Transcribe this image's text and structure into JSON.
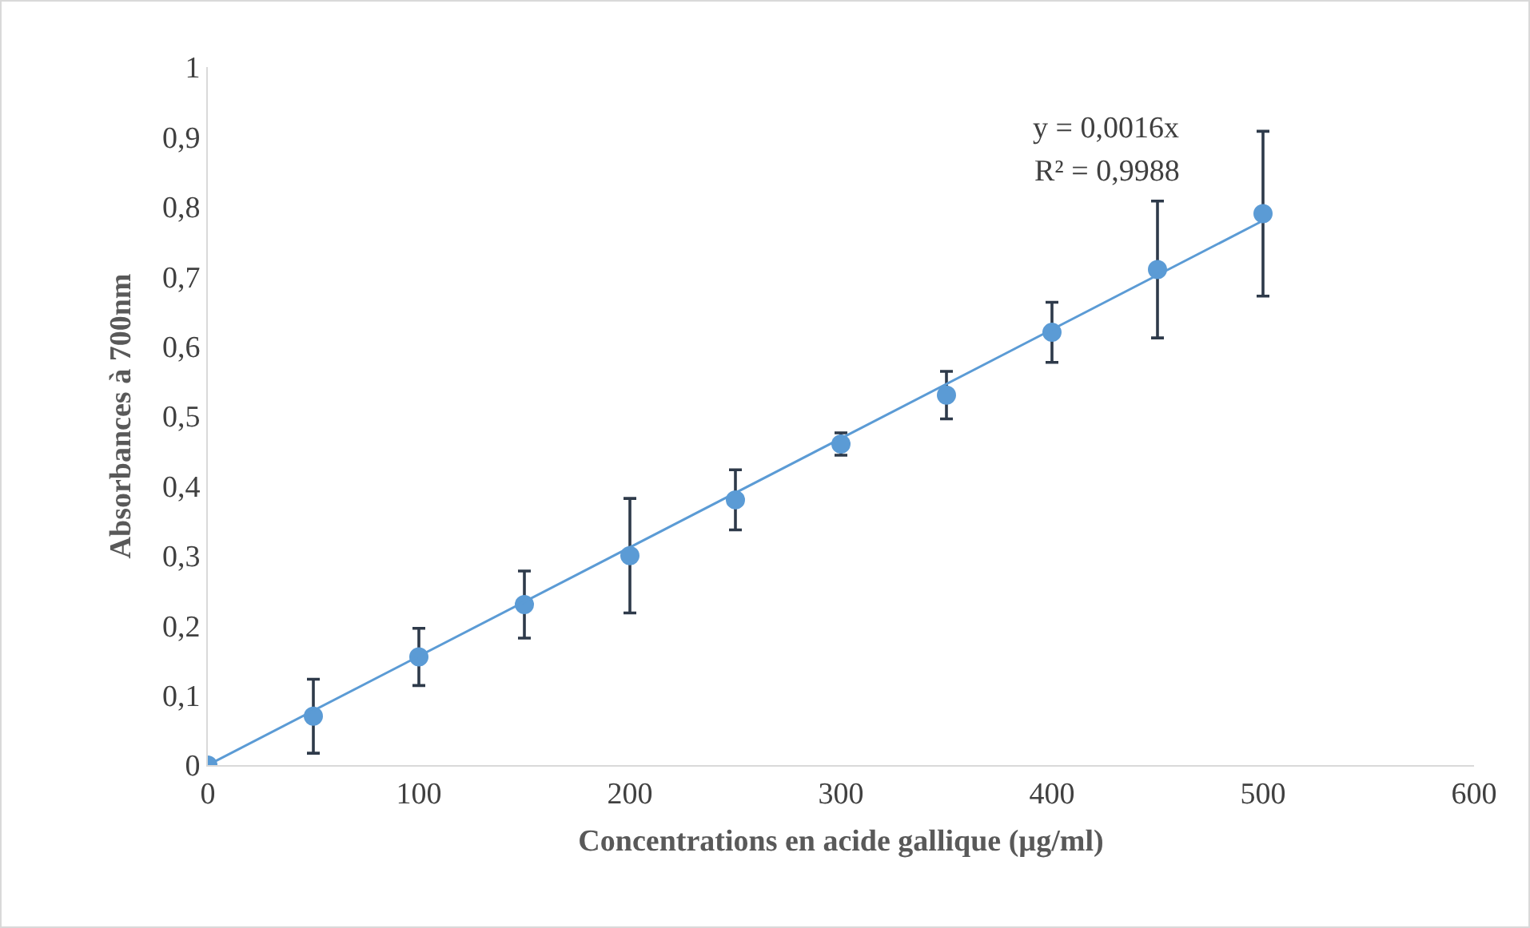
{
  "chart_data": {
    "type": "scatter",
    "xlabel": "Concentrations en acide gallique (µg/ml)",
    "ylabel": "Absorbances à 700nm",
    "x": [
      0,
      50,
      100,
      150,
      200,
      250,
      300,
      350,
      400,
      450,
      500
    ],
    "series": [
      {
        "color": "#5b9bd5",
        "marker": "circle",
        "values": [
          0,
          0.07,
          0.155,
          0.23,
          0.3,
          0.38,
          0.46,
          0.53,
          0.62,
          0.71,
          0.79
        ],
        "errors": [
          null,
          0.053,
          0.041,
          0.048,
          0.082,
          0.043,
          0.016,
          0.034,
          0.043,
          0.098,
          0.118
        ]
      },
      {
        "type": "line",
        "color": "#5b9bd5",
        "marker": "none",
        "line_style": "solid",
        "x": [
          0,
          500
        ],
        "values": [
          0,
          0.78
        ]
      }
    ],
    "annotations": [
      "y = 0,0016x",
      "R² = 0,9988"
    ],
    "xlim": [
      0,
      600
    ],
    "xticks": [
      0,
      100,
      200,
      300,
      400,
      500,
      600
    ],
    "ylim": [
      0,
      1
    ],
    "yticks": [
      0,
      {
        "value": 0.1,
        "label": "0,1"
      },
      {
        "value": 0.2,
        "label": "0,2"
      },
      {
        "value": 0.3,
        "label": "0,3"
      },
      {
        "value": 0.4,
        "label": "0,4"
      },
      {
        "value": 0.5,
        "label": "0,5"
      },
      {
        "value": 0.6,
        "label": "0,6"
      },
      {
        "value": 0.7,
        "label": "0,7"
      },
      {
        "value": 0.8,
        "label": "0,8"
      },
      {
        "value": 0.9,
        "label": "0,9"
      },
      1
    ],
    "grid": false
  }
}
